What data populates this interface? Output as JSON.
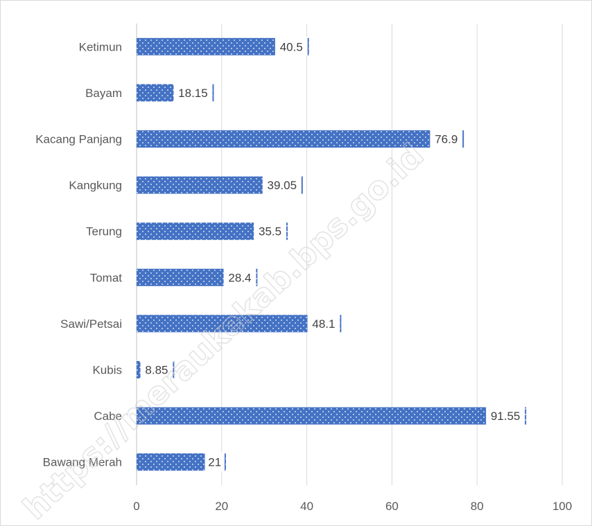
{
  "chart_data": {
    "type": "bar",
    "orientation": "horizontal",
    "categories": [
      "Ketimun",
      "Bayam",
      "Kacang Panjang",
      "Kangkung",
      "Terung",
      "Tomat",
      "Sawi/Petsai",
      "Kubis",
      "Cabe",
      "Bawang Merah"
    ],
    "values": [
      40.5,
      18.15,
      76.9,
      39.05,
      35.5,
      28.4,
      48.1,
      8.85,
      91.55,
      21
    ],
    "value_labels": [
      "40.5",
      "18.15",
      "76.9",
      "39.05",
      "35.5",
      "28.4",
      "48.1",
      "8.85",
      "91.55",
      "21"
    ],
    "xlim": [
      0,
      100
    ],
    "x_ticks": [
      "0",
      "20",
      "40",
      "60",
      "80",
      "100"
    ],
    "grid": "vertical",
    "bar_color": "#4472c4",
    "bar_pattern": "dotted",
    "title": "",
    "xlabel": "",
    "ylabel": ""
  },
  "watermark": "https://meraukekab.bps.go.id"
}
